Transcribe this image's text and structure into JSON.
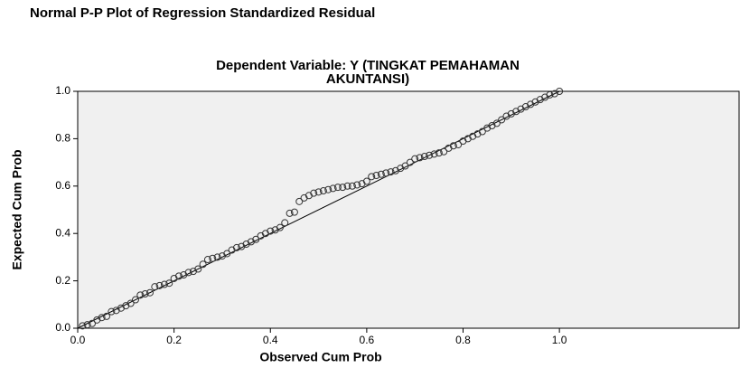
{
  "chart_data": {
    "type": "scatter",
    "title": "Normal P-P Plot of Regression Standardized Residual",
    "subtitle": [
      "Dependent Variable: Y (TINGKAT PEMAHAMAN",
      "AKUNTANSI)"
    ],
    "x_label": "Observed Cum Prob",
    "y_label": "Expected Cum Prob",
    "xlim": [
      0,
      1.373
    ],
    "ylim": [
      0,
      1
    ],
    "xticks": [
      {
        "value": 0,
        "label": "0.0"
      },
      0.2,
      0.4,
      0.6,
      0.8,
      {
        "value": 1,
        "label": "1.0"
      }
    ],
    "yticks": [
      {
        "value": 0,
        "label": "0.0"
      },
      0.2,
      0.4,
      0.6,
      0.8,
      {
        "value": 1,
        "label": "1.0"
      }
    ],
    "reference_line": {
      "x": [
        0,
        1
      ],
      "y": [
        0,
        1
      ]
    },
    "color": "#333333",
    "x": [
      0.01,
      0.02,
      0.03,
      0.04,
      0.05,
      0.06,
      0.07,
      0.08,
      0.09,
      0.1,
      0.11,
      0.12,
      0.13,
      0.14,
      0.15,
      0.16,
      0.17,
      0.18,
      0.19,
      0.2,
      0.21,
      0.22,
      0.23,
      0.24,
      0.25,
      0.26,
      0.27,
      0.28,
      0.29,
      0.3,
      0.31,
      0.32,
      0.33,
      0.34,
      0.35,
      0.36,
      0.37,
      0.38,
      0.39,
      0.4,
      0.41,
      0.42,
      0.43,
      0.44,
      0.45,
      0.46,
      0.47,
      0.48,
      0.49,
      0.5,
      0.51,
      0.52,
      0.53,
      0.54,
      0.55,
      0.56,
      0.57,
      0.58,
      0.59,
      0.6,
      0.61,
      0.62,
      0.63,
      0.64,
      0.65,
      0.66,
      0.67,
      0.68,
      0.69,
      0.7,
      0.71,
      0.72,
      0.73,
      0.74,
      0.75,
      0.76,
      0.77,
      0.78,
      0.79,
      0.8,
      0.81,
      0.82,
      0.83,
      0.84,
      0.85,
      0.86,
      0.87,
      0.88,
      0.89,
      0.9,
      0.91,
      0.92,
      0.93,
      0.94,
      0.95,
      0.96,
      0.97,
      0.98,
      0.99,
      1.0
    ],
    "values": [
      0.01,
      0.015,
      0.02,
      0.035,
      0.045,
      0.05,
      0.07,
      0.075,
      0.085,
      0.095,
      0.105,
      0.12,
      0.14,
      0.145,
      0.15,
      0.175,
      0.18,
      0.185,
      0.19,
      0.21,
      0.22,
      0.225,
      0.235,
      0.24,
      0.25,
      0.27,
      0.29,
      0.295,
      0.3,
      0.305,
      0.315,
      0.33,
      0.34,
      0.345,
      0.355,
      0.365,
      0.375,
      0.39,
      0.4,
      0.41,
      0.415,
      0.425,
      0.445,
      0.485,
      0.49,
      0.535,
      0.55,
      0.56,
      0.57,
      0.575,
      0.58,
      0.585,
      0.59,
      0.595,
      0.595,
      0.6,
      0.6,
      0.605,
      0.61,
      0.62,
      0.64,
      0.645,
      0.65,
      0.655,
      0.66,
      0.665,
      0.675,
      0.685,
      0.7,
      0.715,
      0.72,
      0.725,
      0.73,
      0.735,
      0.74,
      0.745,
      0.76,
      0.77,
      0.775,
      0.79,
      0.8,
      0.81,
      0.82,
      0.83,
      0.845,
      0.855,
      0.865,
      0.88,
      0.895,
      0.905,
      0.915,
      0.925,
      0.935,
      0.945,
      0.955,
      0.965,
      0.975,
      0.985,
      0.99,
      1.0
    ]
  }
}
